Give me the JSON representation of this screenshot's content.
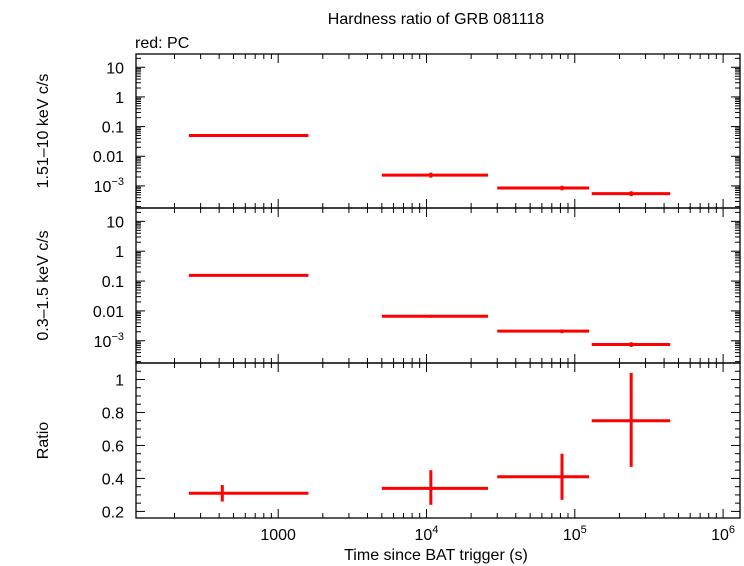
{
  "chart_data": {
    "type": "scatter",
    "title": "Hardness ratio of GRB 081118",
    "legend_text": "red: PC",
    "series_color": "#ff0000",
    "xlabel": "Time since BAT trigger (s)",
    "xscale": "log",
    "xlim": [
      110,
      1300000
    ],
    "xticks": [
      {
        "value": 1000,
        "label": "1000"
      },
      {
        "value": 10000,
        "base": "10",
        "exp": "4"
      },
      {
        "value": 100000,
        "base": "10",
        "exp": "5"
      },
      {
        "value": 1000000,
        "base": "10",
        "exp": "6"
      }
    ],
    "panels": [
      {
        "ylabel": "1.51–10 keV c/s",
        "yscale": "log",
        "ylim": [
          0.00018,
          28
        ],
        "yticks": [
          {
            "value": 10,
            "label": "10"
          },
          {
            "value": 1,
            "label": "1"
          },
          {
            "value": 0.1,
            "label": "0.1"
          },
          {
            "value": 0.01,
            "label": "0.01"
          },
          {
            "value": 0.001,
            "base": "10",
            "exp": "−3"
          }
        ],
        "points": [
          {
            "x": 420,
            "xlo": 250,
            "xhi": 1600,
            "y": 0.05,
            "ylo": 0.045,
            "yhi": 0.056
          },
          {
            "x": 10700,
            "xlo": 5000,
            "xhi": 26000,
            "y": 0.0023,
            "ylo": 0.0019,
            "yhi": 0.0028
          },
          {
            "x": 82000,
            "xlo": 30000,
            "xhi": 125000,
            "y": 0.00085,
            "ylo": 0.00071,
            "yhi": 0.00101
          },
          {
            "x": 240000,
            "xlo": 130000,
            "xhi": 440000,
            "y": 0.00055,
            "ylo": 0.00045,
            "yhi": 0.00066
          }
        ]
      },
      {
        "ylabel": "0.3–1.5 keV c/s",
        "yscale": "log",
        "ylim": [
          0.00018,
          28
        ],
        "yticks": [
          {
            "value": 10,
            "label": "10"
          },
          {
            "value": 1,
            "label": "1"
          },
          {
            "value": 0.1,
            "label": "0.1"
          },
          {
            "value": 0.01,
            "label": "0.01"
          },
          {
            "value": 0.001,
            "base": "10",
            "exp": "−3"
          }
        ],
        "points": [
          {
            "x": 420,
            "xlo": 250,
            "xhi": 1600,
            "y": 0.155,
            "ylo": 0.143,
            "yhi": 0.168
          },
          {
            "x": 10700,
            "xlo": 5000,
            "xhi": 26000,
            "y": 0.0066,
            "ylo": 0.0059,
            "yhi": 0.0074
          },
          {
            "x": 82000,
            "xlo": 30000,
            "xhi": 125000,
            "y": 0.0021,
            "ylo": 0.0018,
            "yhi": 0.0024
          },
          {
            "x": 240000,
            "xlo": 130000,
            "xhi": 440000,
            "y": 0.00075,
            "ylo": 0.00062,
            "yhi": 0.00089
          }
        ]
      },
      {
        "ylabel": "Ratio",
        "yscale": "linear",
        "ylim": [
          0.16,
          1.1
        ],
        "yticks": [
          {
            "value": 1,
            "label": "1"
          },
          {
            "value": 0.8,
            "label": "0.8"
          },
          {
            "value": 0.6,
            "label": "0.6"
          },
          {
            "value": 0.4,
            "label": "0.4"
          },
          {
            "value": 0.2,
            "label": "0.2"
          }
        ],
        "minor_step": 0.05,
        "points": [
          {
            "x": 420,
            "xlo": 250,
            "xhi": 1600,
            "y": 0.31,
            "ylo": 0.26,
            "yhi": 0.36
          },
          {
            "x": 10700,
            "xlo": 5000,
            "xhi": 26000,
            "y": 0.34,
            "ylo": 0.24,
            "yhi": 0.45
          },
          {
            "x": 82000,
            "xlo": 30000,
            "xhi": 125000,
            "y": 0.41,
            "ylo": 0.27,
            "yhi": 0.55
          },
          {
            "x": 240000,
            "xlo": 130000,
            "xhi": 440000,
            "y": 0.75,
            "ylo": 0.47,
            "yhi": 1.04
          }
        ]
      }
    ]
  }
}
